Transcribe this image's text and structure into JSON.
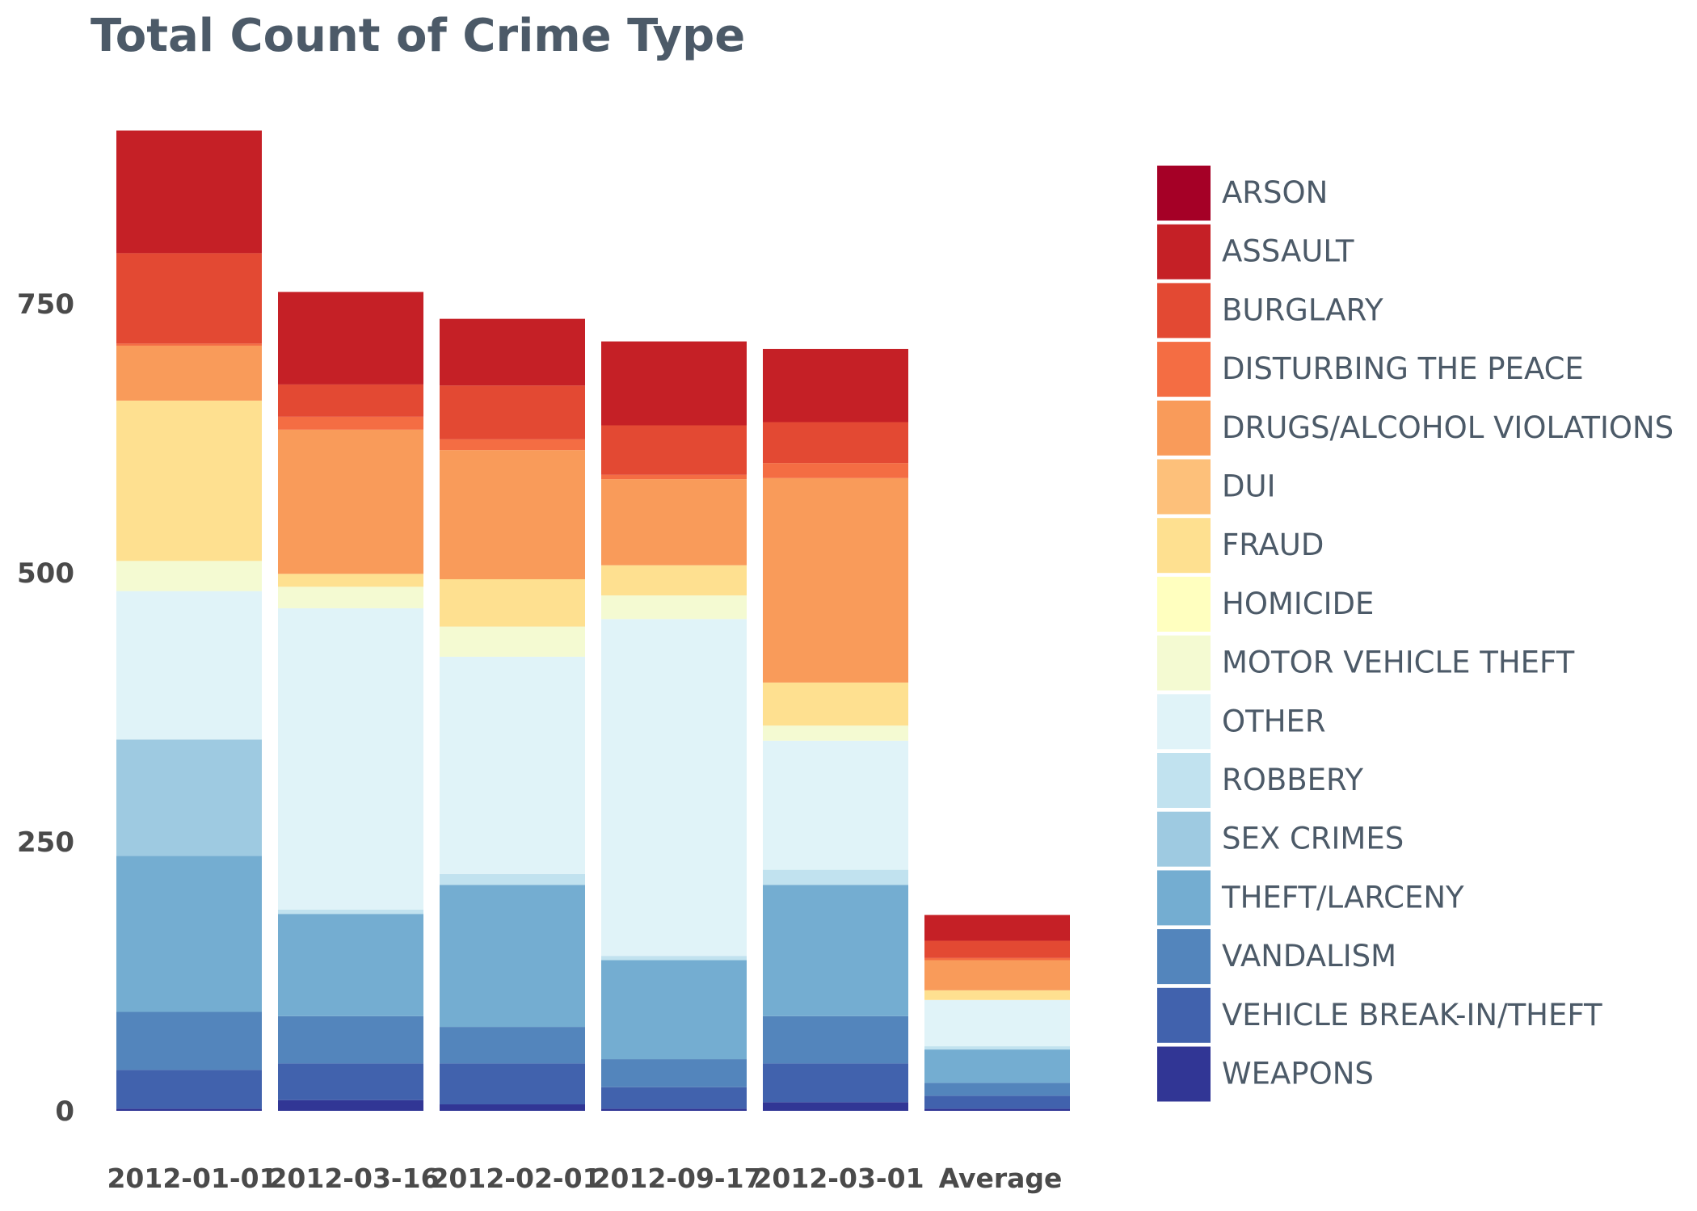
{
  "chart_data": {
    "type": "bar",
    "stacked": true,
    "title": "Total Count of Crime Type",
    "xlabel": "",
    "ylabel": "",
    "ylim": [
      0,
      920
    ],
    "yticks": [
      0,
      250,
      500,
      750
    ],
    "grid": false,
    "legend_position": "right",
    "categories": [
      "2012-01-01",
      "2012-03-16",
      "2012-02-01",
      "2012-09-17",
      "2012-03-01",
      "Average"
    ],
    "series": [
      {
        "name": "WEAPONS",
        "color": "#313695",
        "values": [
          2,
          10,
          6,
          2,
          8,
          2
        ]
      },
      {
        "name": "VEHICLE BREAK-IN/THEFT",
        "color": "#4162ad",
        "values": [
          36,
          34,
          38,
          20,
          36,
          12
        ]
      },
      {
        "name": "VANDALISM",
        "color": "#5385bc",
        "values": [
          54,
          44,
          34,
          26,
          44,
          12
        ]
      },
      {
        "name": "THEFT/LARCENY",
        "color": "#74add1",
        "values": [
          145,
          95,
          132,
          92,
          122,
          31
        ]
      },
      {
        "name": "SEX CRIMES",
        "color": "#9ecae1",
        "values": [
          108,
          0,
          0,
          0,
          0,
          0
        ]
      },
      {
        "name": "ROBBERY",
        "color": "#c1e2ef",
        "values": [
          0,
          4,
          10,
          4,
          14,
          3
        ]
      },
      {
        "name": "OTHER",
        "color": "#e0f3f8",
        "values": [
          138,
          280,
          202,
          313,
          120,
          43
        ]
      },
      {
        "name": "MOTOR VEHICLE THEFT",
        "color": "#f4fad2",
        "values": [
          28,
          20,
          28,
          22,
          14,
          0
        ]
      },
      {
        "name": "HOMICIDE",
        "color": "#ffffbf",
        "values": [
          0,
          0,
          0,
          0,
          0,
          0
        ]
      },
      {
        "name": "FRAUD",
        "color": "#fee090",
        "values": [
          149,
          12,
          44,
          28,
          40,
          9
        ]
      },
      {
        "name": "DUI",
        "color": "#fdc07a",
        "values": [
          0,
          0,
          0,
          0,
          0,
          0
        ]
      },
      {
        "name": "DRUGS/ALCOHOL VIOLATIONS",
        "color": "#f99b5a",
        "values": [
          51,
          134,
          120,
          80,
          190,
          28
        ]
      },
      {
        "name": "DISTURBING THE PEACE",
        "color": "#f46d43",
        "values": [
          2,
          12,
          10,
          4,
          14,
          2
        ]
      },
      {
        "name": "BURGLARY",
        "color": "#e34933",
        "values": [
          84,
          30,
          50,
          46,
          38,
          16
        ]
      },
      {
        "name": "ASSAULT",
        "color": "#c52026",
        "values": [
          114,
          86,
          62,
          78,
          68,
          24
        ]
      },
      {
        "name": "ARSON",
        "color": "#a50026",
        "values": [
          0,
          0,
          0,
          0,
          0,
          0
        ]
      }
    ],
    "legend_order": [
      "ARSON",
      "ASSAULT",
      "BURGLARY",
      "DISTURBING THE PEACE",
      "DRUGS/ALCOHOL VIOLATIONS",
      "DUI",
      "FRAUD",
      "HOMICIDE",
      "MOTOR VEHICLE THEFT",
      "OTHER",
      "ROBBERY",
      "SEX CRIMES",
      "THEFT/LARCENY",
      "VANDALISM",
      "VEHICLE BREAK-IN/THEFT",
      "WEAPONS"
    ]
  }
}
